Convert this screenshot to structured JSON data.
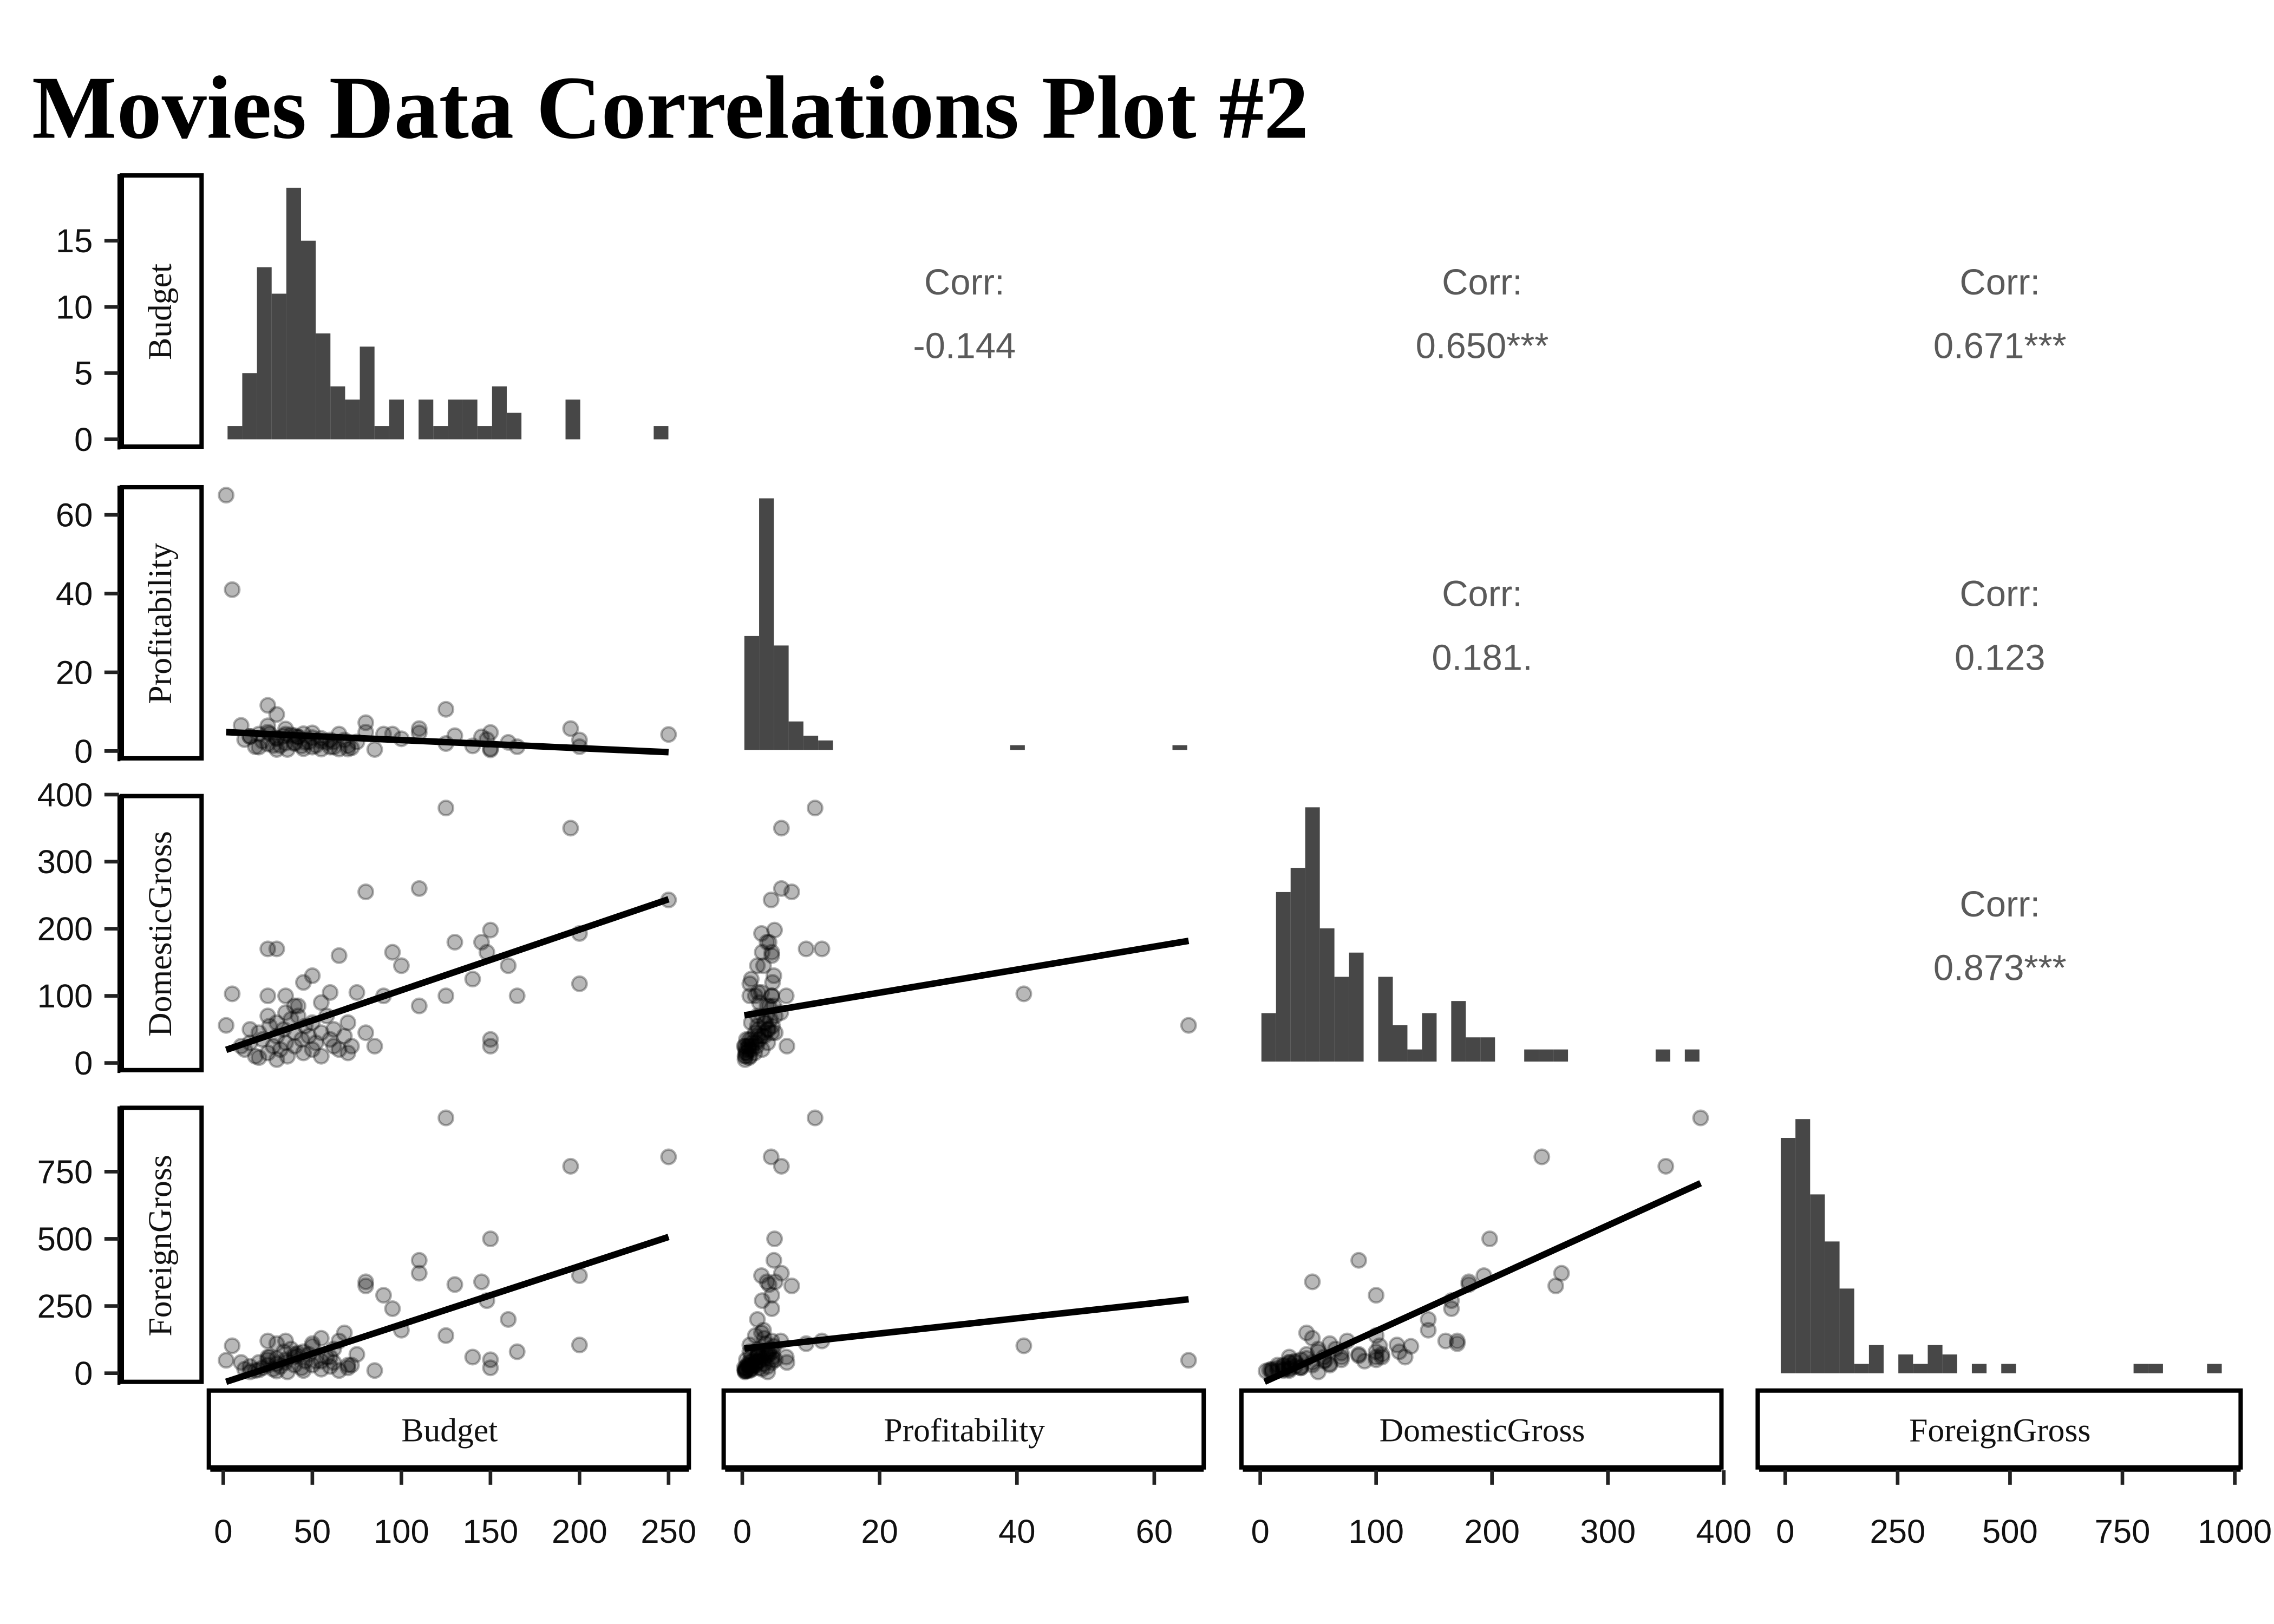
{
  "chart_data": {
    "type": "scatter-matrix",
    "title": "Movies Data Correlations Plot #2",
    "variables": [
      "Budget",
      "Profitability",
      "DomesticGross",
      "ForeignGross"
    ],
    "colors": {
      "bar": "#474747",
      "point": "#000000",
      "line": "#000000",
      "corr_text": "#5a5a5a"
    },
    "point_alpha": 0.3,
    "grid": false,
    "axes": {
      "Budget": {
        "lim": [
          -7.3,
          261.4
        ],
        "ticks": [
          0,
          50,
          100,
          150,
          200,
          250
        ]
      },
      "Profitability": {
        "lim": [
          -2.5,
          67.2
        ],
        "ticks": [
          0,
          20,
          40,
          60
        ]
      },
      "DomesticGross": {
        "lim": [
          -15,
          398
        ],
        "ticks": [
          0,
          100,
          200,
          300,
          400
        ]
      },
      "ForeignGross": {
        "lim": [
          -58,
          1013
        ],
        "ticks": [
          0,
          250,
          500,
          750,
          1000
        ]
      }
    },
    "row_axes": {
      "Budget": {
        "lim": [
          -0.77,
          20.04
        ],
        "ticks": [
          0,
          5,
          10,
          15
        ]
      },
      "Profitability": {
        "lim": [
          -2.6,
          67.4
        ],
        "ticks": [
          0,
          20,
          40,
          60
        ]
      },
      "DomesticGross": {
        "lim": [
          -15,
          400
        ],
        "ticks": [
          0,
          100,
          200,
          300,
          400
        ]
      },
      "ForeignGross": {
        "lim": [
          -43,
          993
        ],
        "ticks": [
          0,
          250,
          500,
          750
        ]
      }
    },
    "histograms": {
      "Budget": {
        "bin_start": 2.4,
        "binwidth": 8.25,
        "counts": [
          1,
          5,
          13,
          11,
          19,
          15,
          8,
          4,
          3,
          7,
          1,
          3,
          0,
          3,
          1,
          3,
          3,
          1,
          4,
          2,
          0,
          0,
          0,
          3,
          0,
          0,
          0,
          0,
          0,
          1
        ]
      },
      "Profitability": {
        "bin_start": 0.3,
        "binwidth": 2.15,
        "counts": [
          24,
          53,
          22,
          6,
          3,
          2,
          0,
          0,
          0,
          0,
          0,
          0,
          0,
          0,
          0,
          0,
          0,
          0,
          1,
          0,
          0,
          0,
          0,
          0,
          0,
          0,
          0,
          0,
          0,
          1
        ]
      },
      "DomesticGross": {
        "bin_start": 1,
        "binwidth": 12.6,
        "counts": [
          4,
          14,
          16,
          21,
          11,
          7,
          9,
          0,
          7,
          3,
          1,
          4,
          0,
          5,
          2,
          2,
          0,
          0,
          1,
          1,
          1,
          0,
          0,
          0,
          0,
          0,
          0,
          1,
          0,
          1
        ]
      },
      "ForeignGross": {
        "bin_start": -10,
        "binwidth": 32.7,
        "counts": [
          25,
          27,
          19,
          14,
          9,
          1,
          3,
          0,
          2,
          1,
          3,
          2,
          0,
          1,
          0,
          1,
          0,
          0,
          0,
          0,
          0,
          0,
          0,
          0,
          1,
          1,
          0,
          0,
          0,
          1
        ]
      }
    },
    "correlations": [
      {
        "row": 0,
        "col": 1,
        "label": "Corr:",
        "value": "-0.144"
      },
      {
        "row": 0,
        "col": 2,
        "label": "Corr:",
        "value": "0.650***"
      },
      {
        "row": 0,
        "col": 3,
        "label": "Corr:",
        "value": "0.671***"
      },
      {
        "row": 1,
        "col": 2,
        "label": "Corr:",
        "value": "0.181."
      },
      {
        "row": 1,
        "col": 3,
        "label": "Corr:",
        "value": "0.123"
      },
      {
        "row": 2,
        "col": 3,
        "label": "Corr:",
        "value": "0.873***"
      }
    ],
    "regression_lines": [
      {
        "x": "Budget",
        "y": "Profitability",
        "from": [
          1.6,
          4.8
        ],
        "to": [
          250,
          -0.3
        ]
      },
      {
        "x": "Budget",
        "y": "DomesticGross",
        "from": [
          1.6,
          19.5
        ],
        "to": [
          250,
          244
        ]
      },
      {
        "x": "Budget",
        "y": "ForeignGross",
        "from": [
          1.6,
          -32
        ],
        "to": [
          250,
          507
        ]
      },
      {
        "x": "Profitability",
        "y": "DomesticGross",
        "from": [
          0.3,
          71
        ],
        "to": [
          65,
          182
        ]
      },
      {
        "x": "Profitability",
        "y": "ForeignGross",
        "from": [
          0.3,
          92
        ],
        "to": [
          65,
          275
        ]
      },
      {
        "x": "DomesticGross",
        "y": "ForeignGross",
        "from": [
          3.75,
          -32
        ],
        "to": [
          380,
          707
        ]
      }
    ],
    "columns": [
      "Budget",
      "Profitability",
      "DomesticGross",
      "ForeignGross"
    ],
    "points": [
      [
        1.6,
        65,
        56,
        48
      ],
      [
        5,
        41,
        103,
        102
      ],
      [
        125,
        10.6,
        380,
        950
      ],
      [
        195,
        5.7,
        350,
        770
      ],
      [
        250,
        4.2,
        243,
        805
      ],
      [
        110,
        5.7,
        260,
        372
      ],
      [
        80,
        7.2,
        255,
        325
      ],
      [
        200,
        2.8,
        193,
        363
      ],
      [
        200,
        1.1,
        118,
        105
      ],
      [
        150,
        4.7,
        198,
        500
      ],
      [
        130,
        3.9,
        180,
        330
      ],
      [
        145,
        3.6,
        180,
        340
      ],
      [
        148,
        2.9,
        165,
        270
      ],
      [
        160,
        2.2,
        145,
        200
      ],
      [
        140,
        1.3,
        125,
        60
      ],
      [
        150,
        0.6,
        35,
        50
      ],
      [
        150,
        0.3,
        25,
        20
      ],
      [
        165,
        1.1,
        100,
        80
      ],
      [
        125,
        1.9,
        100,
        140
      ],
      [
        110,
        4.6,
        85,
        420
      ],
      [
        100,
        3.1,
        145,
        160
      ],
      [
        95,
        4.3,
        165,
        240
      ],
      [
        90,
        4.3,
        100,
        290
      ],
      [
        80,
        4.8,
        45,
        340
      ],
      [
        75,
        2.3,
        105,
        70
      ],
      [
        65,
        4.3,
        160,
        120
      ],
      [
        60,
        2.8,
        105,
        60
      ],
      [
        50,
        4.6,
        130,
        100
      ],
      [
        45,
        4.4,
        120,
        80
      ],
      [
        25,
        11.6,
        170,
        120
      ],
      [
        30,
        9.3,
        170,
        110
      ],
      [
        25,
        6.4,
        100,
        60
      ],
      [
        35,
        4.3,
        100,
        50
      ],
      [
        40,
        3.9,
        85,
        70
      ],
      [
        55,
        2.5,
        90,
        45
      ],
      [
        70,
        1.3,
        60,
        30
      ],
      [
        85,
        0.4,
        25,
        10
      ],
      [
        72,
        0.8,
        25,
        30
      ],
      [
        62,
        1.0,
        25,
        40
      ],
      [
        12,
        2.9,
        20,
        15
      ],
      [
        15,
        3.7,
        30,
        25
      ],
      [
        18,
        1.1,
        10,
        10
      ],
      [
        20,
        4.3,
        45,
        40
      ],
      [
        22,
        2.5,
        35,
        20
      ],
      [
        25,
        1.8,
        15,
        30
      ],
      [
        26,
        4.4,
        55,
        60
      ],
      [
        28,
        1.4,
        25,
        15
      ],
      [
        30,
        3.2,
        40,
        55
      ],
      [
        30,
        3.2,
        60,
        35
      ],
      [
        32,
        1.4,
        20,
        25
      ],
      [
        34,
        3.8,
        50,
        80
      ],
      [
        35,
        2.0,
        30,
        40
      ],
      [
        36,
        0.4,
        10,
        5
      ],
      [
        38,
        4.1,
        65,
        90
      ],
      [
        40,
        1.9,
        45,
        30
      ],
      [
        40,
        2.1,
        25,
        60
      ],
      [
        42,
        3.5,
        70,
        75
      ],
      [
        44,
        1.3,
        35,
        20
      ],
      [
        45,
        0.6,
        15,
        10
      ],
      [
        46,
        2.2,
        55,
        45
      ],
      [
        48,
        2.3,
        40,
        70
      ],
      [
        50,
        1.0,
        20,
        30
      ],
      [
        50,
        3.4,
        60,
        110
      ],
      [
        52,
        1.4,
        30,
        45
      ],
      [
        55,
        3.2,
        45,
        130
      ],
      [
        55,
        0.5,
        10,
        15
      ],
      [
        58,
        2.2,
        70,
        60
      ],
      [
        60,
        1.0,
        35,
        25
      ],
      [
        62,
        2.3,
        50,
        90
      ],
      [
        65,
        0.5,
        20,
        10
      ],
      [
        68,
        2.8,
        40,
        150
      ],
      [
        70,
        0.5,
        15,
        20
      ],
      [
        30,
        0.4,
        5,
        8
      ],
      [
        20,
        1.0,
        8,
        12
      ],
      [
        25,
        4.8,
        70,
        50
      ],
      [
        35,
        5.6,
        75,
        120
      ],
      [
        42,
        3.6,
        85,
        65
      ],
      [
        15,
        3.7,
        50,
        5
      ],
      [
        10,
        6.5,
        25,
        40
      ]
    ]
  }
}
